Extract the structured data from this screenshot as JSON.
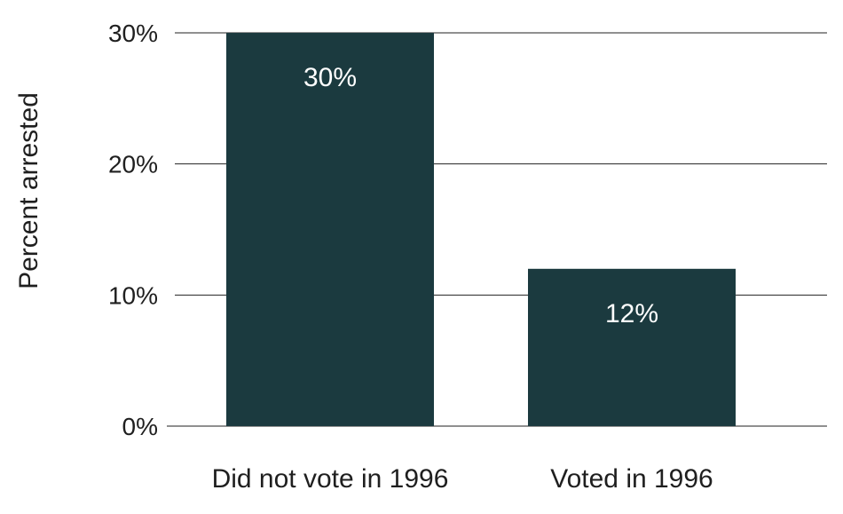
{
  "chart_data": {
    "type": "bar",
    "title": "",
    "xlabel": "",
    "ylabel": "Percent arrested",
    "categories": [
      "Did not vote in 1996",
      "Voted in 1996"
    ],
    "values": [
      30,
      12
    ],
    "data_labels": [
      "30%",
      "12%"
    ],
    "ylim": [
      0,
      30
    ],
    "yticks": [
      0,
      10,
      20,
      30
    ],
    "ytick_labels": [
      "0%",
      "10%",
      "20%",
      "30%"
    ],
    "grid": true,
    "legend": "none",
    "colors": {
      "bar": "#1b3a3f",
      "grid": "#222222",
      "text": "#1f1f1f",
      "data_label": "#ffffff"
    }
  }
}
